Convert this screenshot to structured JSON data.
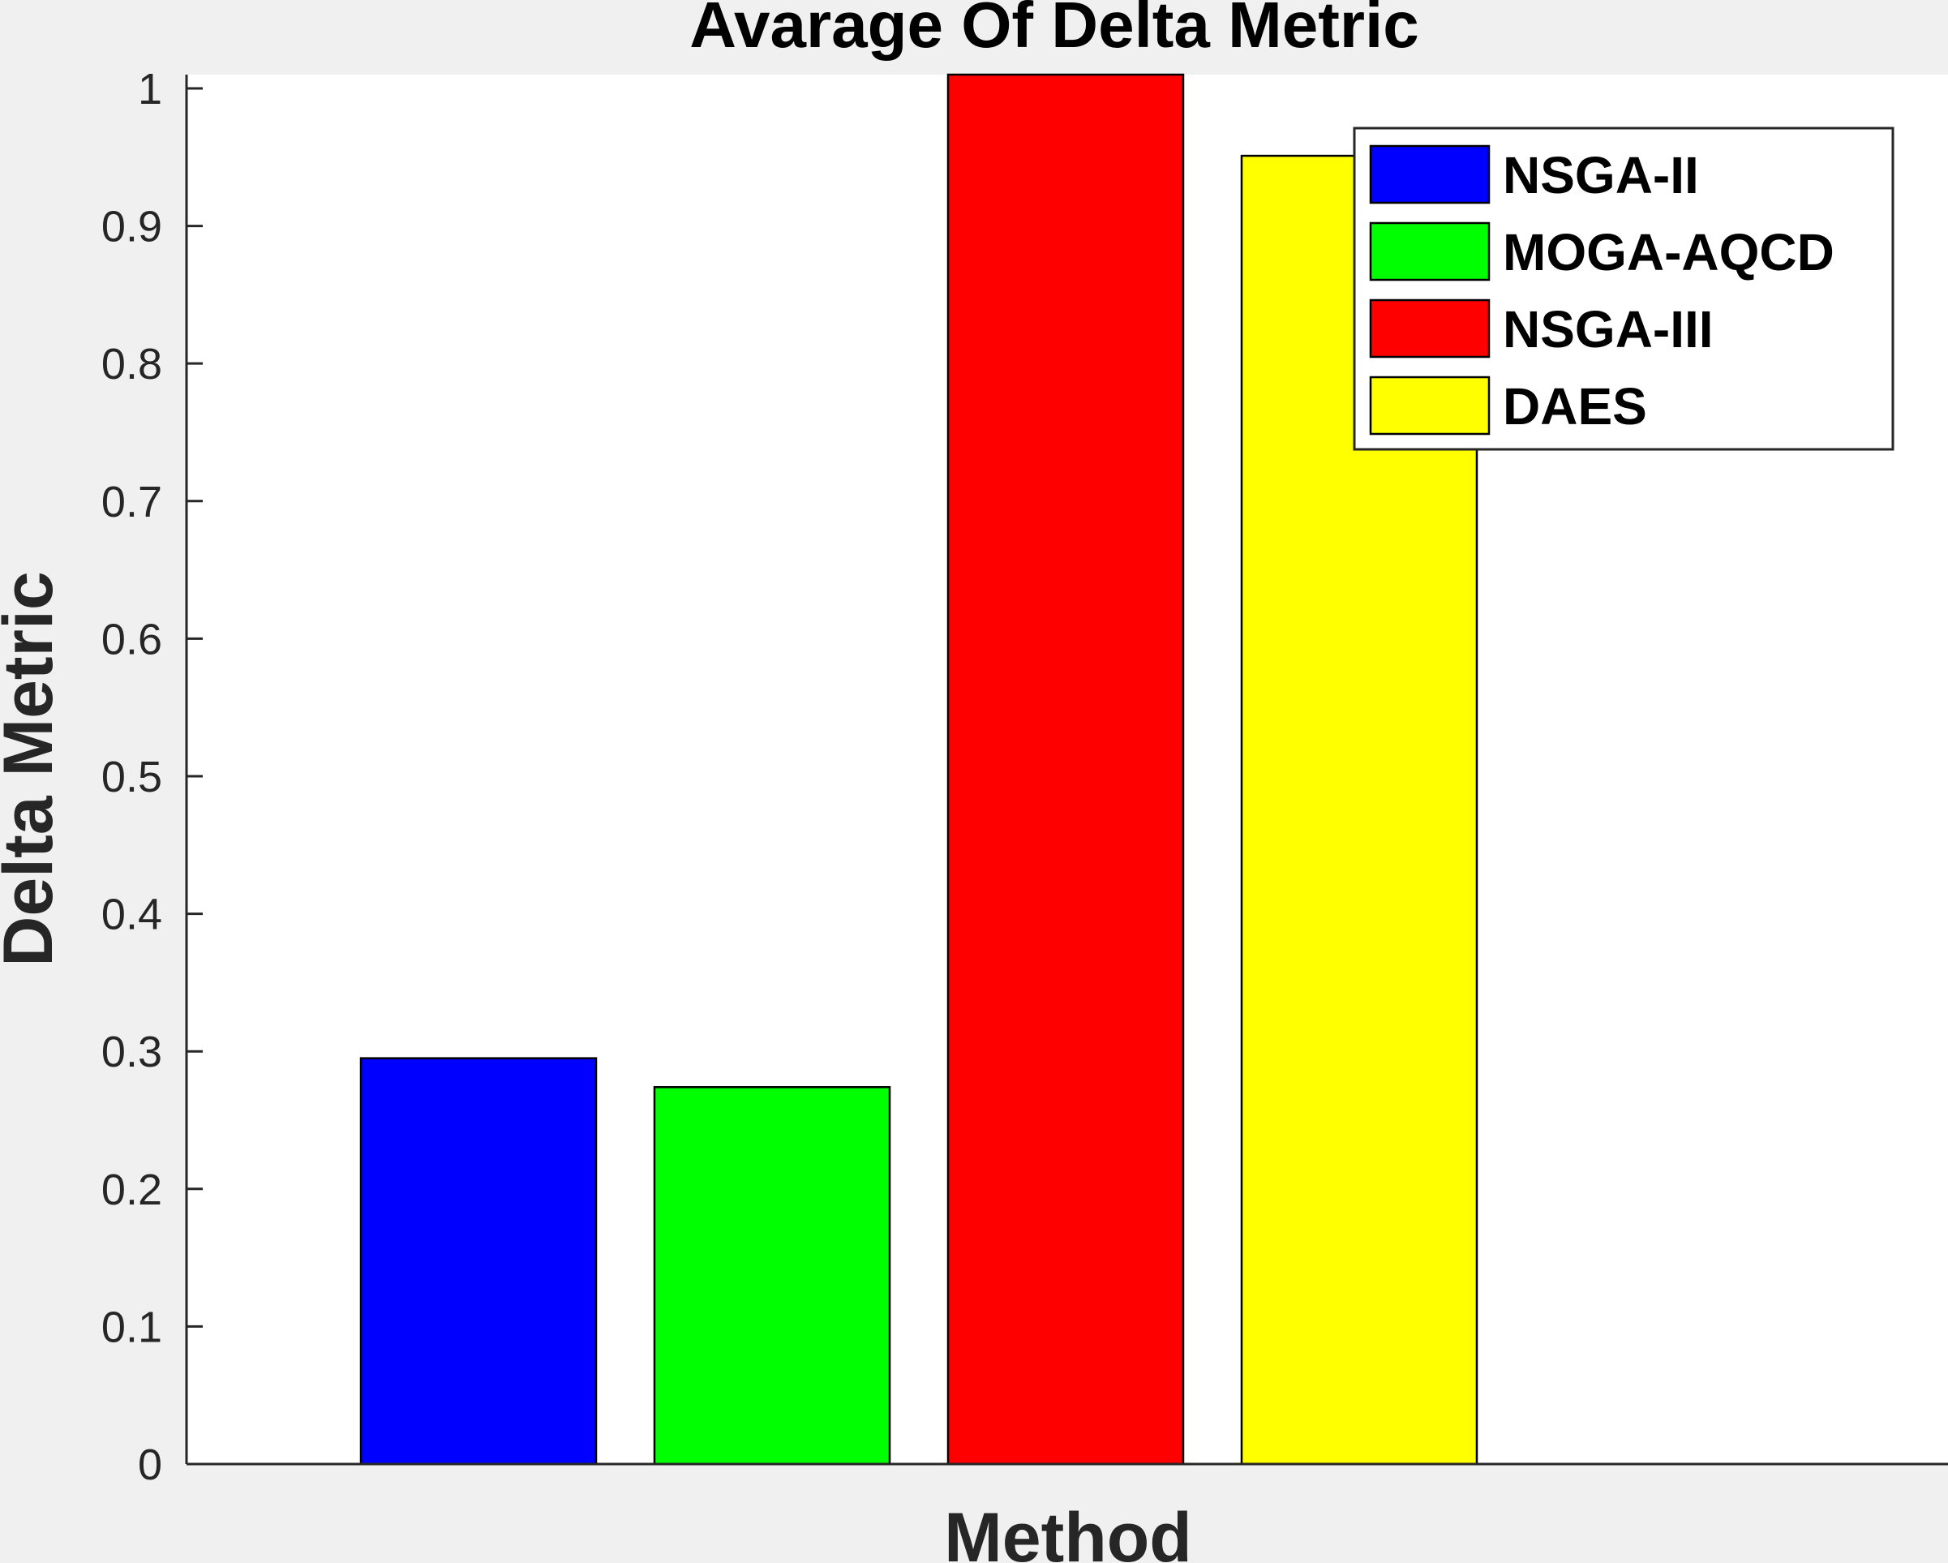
{
  "chart_data": {
    "type": "bar",
    "title": "Avarage Of Delta Metric",
    "xlabel": "Method",
    "ylabel": "Delta Metric",
    "ylim": [
      0,
      1.01
    ],
    "yticks": [
      0,
      0.1,
      0.2,
      0.3,
      0.4,
      0.5,
      0.6,
      0.7,
      0.8,
      0.9,
      1
    ],
    "ytick_labels": [
      "0",
      "0.1",
      "0.2",
      "0.3",
      "0.4",
      "0.5",
      "0.6",
      "0.7",
      "0.8",
      "0.9",
      "1"
    ],
    "grid": false,
    "legend_position": "top-right",
    "series": [
      {
        "name": "NSGA-II",
        "value": 0.295,
        "color": "#0000ff"
      },
      {
        "name": "MOGA-AQCD",
        "value": 0.274,
        "color": "#00ff00"
      },
      {
        "name": "NSGA-III",
        "value": 1.01,
        "color": "#ff0000"
      },
      {
        "name": "DAES",
        "value": 0.951,
        "color": "#ffff00"
      }
    ]
  }
}
